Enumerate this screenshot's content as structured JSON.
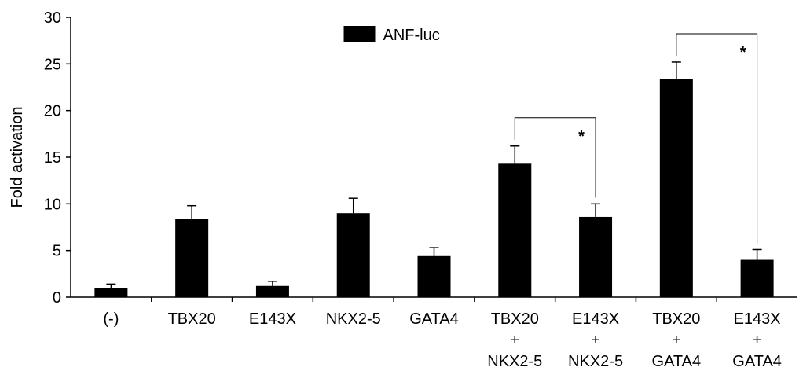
{
  "chart_data": {
    "type": "bar",
    "y_label": "Fold activation",
    "categories": [
      "(-)",
      "TBX20",
      "E143X",
      "NKX2-5",
      "GATA4",
      "TBX20\n+\nNKX2-5",
      "E143X\n+\nNKX2-5",
      "TBX20\n+\nGATA4",
      "E143X\n+\nGATA4"
    ],
    "series": [
      {
        "name": "ANF-luc",
        "color": "#000000",
        "values": [
          1.0,
          8.4,
          1.2,
          9.0,
          4.4,
          14.3,
          8.6,
          23.4,
          4.0
        ],
        "errors": [
          0.4,
          1.4,
          0.5,
          1.6,
          0.9,
          1.9,
          1.4,
          1.8,
          1.1
        ]
      }
    ],
    "ylim": [
      0,
      30
    ],
    "yticks": [
      0,
      5,
      10,
      15,
      20,
      25,
      30
    ],
    "grid": false,
    "legend": "upper center",
    "significance": [
      {
        "from": 5,
        "to": 6,
        "label": "*"
      },
      {
        "from": 7,
        "to": 8,
        "label": "*"
      }
    ]
  }
}
